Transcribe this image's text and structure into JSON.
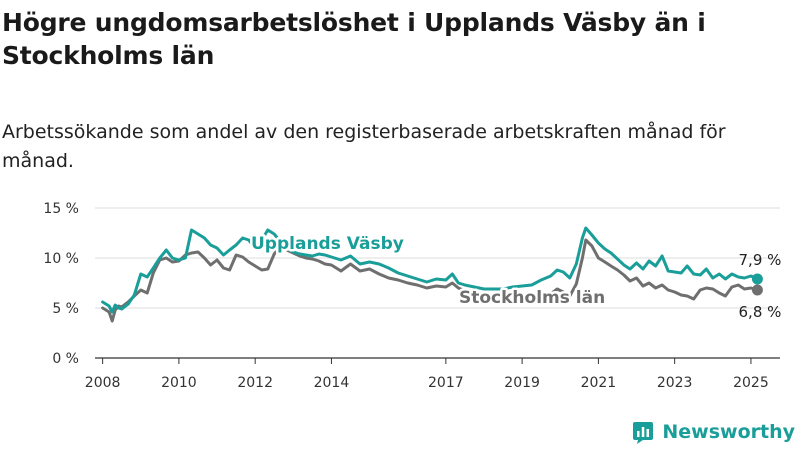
{
  "title": "Högre ungdomsarbetslöshet i Upplands Väsby än i Stockholms län",
  "subtitle": "Arbetssökande som andel av den registerbaserade arbetskraften månad för månad.",
  "brand": {
    "name": "Newsworthy",
    "icon": "newsworthy-logo-icon"
  },
  "colors": {
    "vasby": "#1a9e99",
    "stockholm": "#6f6f6f",
    "grid": "#dcdcdc"
  },
  "chart_data": {
    "type": "line",
    "title": "Högre ungdomsarbetslöshet i Upplands Väsby än i Stockholms län",
    "subtitle": "Arbetssökande som andel av den registerbaserade arbetskraften månad för månad.",
    "xlim": [
      2007.8,
      2025.5
    ],
    "ylim": [
      0,
      15
    ],
    "y_ticks": [
      0,
      5,
      10,
      15
    ],
    "y_tick_labels": [
      "0 %",
      "5 %",
      "10 %",
      "15 %"
    ],
    "x_ticks": [
      2008,
      2010,
      2012,
      2014,
      2017,
      2019,
      2021,
      2023,
      2025
    ],
    "x_tick_labels": [
      "2008",
      "2010",
      "2012",
      "2014",
      "2017",
      "2019",
      "2021",
      "2023",
      "2025"
    ],
    "grid": true,
    "legend": "inline labels on lines",
    "series": [
      {
        "name": "Upplands Väsby",
        "color": "#1a9e99",
        "end_label": "7,9 %",
        "x": [
          2008.0,
          2008.17,
          2008.25,
          2008.33,
          2008.42,
          2008.5,
          2008.67,
          2008.83,
          2009.0,
          2009.17,
          2009.33,
          2009.5,
          2009.67,
          2009.83,
          2010.0,
          2010.17,
          2010.33,
          2010.5,
          2010.67,
          2010.83,
          2011.0,
          2011.17,
          2011.33,
          2011.5,
          2011.67,
          2011.83,
          2012.0,
          2012.17,
          2012.33,
          2012.5,
          2012.67,
          2012.83,
          2013.0,
          2013.17,
          2013.33,
          2013.5,
          2013.67,
          2013.83,
          2014.0,
          2014.25,
          2014.5,
          2014.75,
          2015.0,
          2015.25,
          2015.5,
          2015.75,
          2016.0,
          2016.25,
          2016.5,
          2016.75,
          2017.0,
          2017.17,
          2017.33,
          2017.5,
          2017.75,
          2018.0,
          2018.25,
          2018.5,
          2018.75,
          2019.0,
          2019.25,
          2019.5,
          2019.75,
          2019.92,
          2020.08,
          2020.25,
          2020.42,
          2020.58,
          2020.67,
          2020.83,
          2021.0,
          2021.17,
          2021.33,
          2021.5,
          2021.67,
          2021.83,
          2022.0,
          2022.17,
          2022.33,
          2022.5,
          2022.67,
          2022.83,
          2023.0,
          2023.17,
          2023.33,
          2023.5,
          2023.67,
          2023.83,
          2024.0,
          2024.17,
          2024.33,
          2024.5,
          2024.67,
          2024.83,
          2025.0,
          2025.17
        ],
        "y": [
          5.6,
          5.2,
          4.6,
          5.3,
          5.0,
          4.9,
          5.4,
          6.3,
          8.4,
          8.1,
          9.0,
          10.0,
          10.8,
          10.0,
          9.8,
          10.0,
          12.8,
          12.4,
          12.0,
          11.3,
          11.0,
          10.3,
          10.8,
          11.3,
          12.0,
          11.8,
          11.0,
          11.8,
          12.8,
          12.4,
          11.6,
          11.0,
          10.6,
          10.4,
          10.3,
          10.2,
          10.4,
          10.3,
          10.1,
          9.8,
          10.2,
          9.4,
          9.6,
          9.4,
          9.0,
          8.5,
          8.2,
          7.9,
          7.6,
          7.9,
          7.8,
          8.4,
          7.5,
          7.3,
          7.1,
          6.9,
          6.9,
          6.9,
          7.1,
          7.2,
          7.3,
          7.8,
          8.2,
          8.8,
          8.6,
          8.0,
          9.4,
          12.0,
          13.0,
          12.3,
          11.5,
          10.9,
          10.5,
          9.9,
          9.3,
          8.9,
          9.5,
          8.9,
          9.7,
          9.2,
          10.2,
          8.7,
          8.6,
          8.5,
          9.2,
          8.4,
          8.3,
          8.9,
          8.0,
          8.4,
          7.9,
          8.4,
          8.1,
          8.0,
          8.2,
          7.9
        ]
      },
      {
        "name": "Stockholms län",
        "color": "#6f6f6f",
        "end_label": "6,8 %",
        "x": [
          2008.0,
          2008.17,
          2008.25,
          2008.33,
          2008.42,
          2008.5,
          2008.67,
          2008.83,
          2009.0,
          2009.17,
          2009.33,
          2009.5,
          2009.67,
          2009.83,
          2010.0,
          2010.17,
          2010.33,
          2010.5,
          2010.67,
          2010.83,
          2011.0,
          2011.17,
          2011.33,
          2011.5,
          2011.67,
          2011.83,
          2012.0,
          2012.17,
          2012.33,
          2012.5,
          2012.67,
          2012.83,
          2013.0,
          2013.17,
          2013.33,
          2013.5,
          2013.67,
          2013.83,
          2014.0,
          2014.25,
          2014.5,
          2014.75,
          2015.0,
          2015.25,
          2015.5,
          2015.75,
          2016.0,
          2016.25,
          2016.5,
          2016.75,
          2017.0,
          2017.17,
          2017.33,
          2017.5,
          2017.75,
          2018.0,
          2018.25,
          2018.5,
          2018.75,
          2019.0,
          2019.25,
          2019.5,
          2019.75,
          2019.92,
          2020.08,
          2020.25,
          2020.42,
          2020.58,
          2020.67,
          2020.83,
          2021.0,
          2021.17,
          2021.33,
          2021.5,
          2021.67,
          2021.83,
          2022.0,
          2022.17,
          2022.33,
          2022.5,
          2022.67,
          2022.83,
          2023.0,
          2023.17,
          2023.33,
          2023.5,
          2023.67,
          2023.83,
          2024.0,
          2024.17,
          2024.33,
          2024.5,
          2024.67,
          2024.83,
          2025.0,
          2025.17
        ],
        "y": [
          5.0,
          4.6,
          3.7,
          4.8,
          5.2,
          5.1,
          5.6,
          6.2,
          6.8,
          6.5,
          8.5,
          9.8,
          10.0,
          9.6,
          9.7,
          10.3,
          10.5,
          10.6,
          10.0,
          9.3,
          9.8,
          9.0,
          8.8,
          10.3,
          10.1,
          9.6,
          9.2,
          8.8,
          8.9,
          10.4,
          11.2,
          10.8,
          10.5,
          10.2,
          10.0,
          9.9,
          9.7,
          9.4,
          9.3,
          8.7,
          9.4,
          8.7,
          8.9,
          8.4,
          8.0,
          7.8,
          7.5,
          7.3,
          7.0,
          7.2,
          7.1,
          7.5,
          7.0,
          6.7,
          6.5,
          6.3,
          6.2,
          6.1,
          6.0,
          6.0,
          5.9,
          6.2,
          6.4,
          6.9,
          6.6,
          6.2,
          7.4,
          10.0,
          11.8,
          11.2,
          10.0,
          9.6,
          9.2,
          8.8,
          8.3,
          7.7,
          8.0,
          7.2,
          7.5,
          7.0,
          7.3,
          6.8,
          6.6,
          6.3,
          6.2,
          5.9,
          6.8,
          7.0,
          6.9,
          6.5,
          6.2,
          7.1,
          7.3,
          6.9,
          7.0,
          6.8
        ]
      }
    ]
  }
}
